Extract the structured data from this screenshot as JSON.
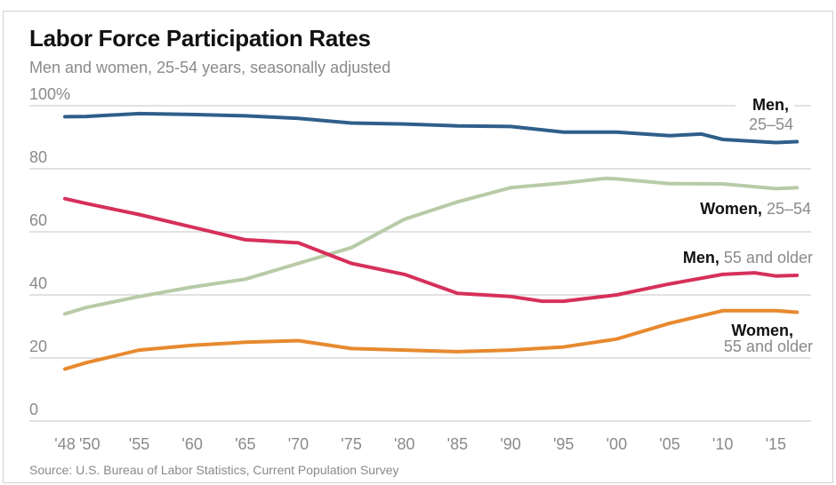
{
  "title": "Labor Force Participation Rates",
  "subtitle": "Men and women, 25-54 years, seasonally adjusted",
  "source": "Source: U.S. Bureau of Labor Statistics, Current Population Survey",
  "chart_data": {
    "type": "line",
    "title": "Labor Force Participation Rates",
    "subtitle": "Men and women, 25-54 years, seasonally adjusted",
    "xlim": [
      1948,
      2017
    ],
    "ylim": [
      0,
      100
    ],
    "grid": true,
    "y_ticks": [
      {
        "v": 0,
        "label": "0"
      },
      {
        "v": 20,
        "label": "20"
      },
      {
        "v": 40,
        "label": "40"
      },
      {
        "v": 60,
        "label": "60"
      },
      {
        "v": 80,
        "label": "80"
      },
      {
        "v": 100,
        "label": "100%"
      }
    ],
    "x_ticks": [
      {
        "v": 1948,
        "label": "'48"
      },
      {
        "v": 1950,
        "label": "'50"
      },
      {
        "v": 1955,
        "label": "'55"
      },
      {
        "v": 1960,
        "label": "'60"
      },
      {
        "v": 1965,
        "label": "'65"
      },
      {
        "v": 1970,
        "label": "'70"
      },
      {
        "v": 1975,
        "label": "'75"
      },
      {
        "v": 1980,
        "label": "'80"
      },
      {
        "v": 1985,
        "label": "'85"
      },
      {
        "v": 1990,
        "label": "'90"
      },
      {
        "v": 1995,
        "label": "'95"
      },
      {
        "v": 2000,
        "label": "'00"
      },
      {
        "v": 2005,
        "label": "'05"
      },
      {
        "v": 2010,
        "label": "'10"
      },
      {
        "v": 2015,
        "label": "'15"
      }
    ],
    "series": [
      {
        "name": "Men, 25–54",
        "label_bold": "Men,",
        "label_light": "25–54",
        "color": "#2f5f8a",
        "x": [
          1948,
          1950,
          1955,
          1960,
          1965,
          1970,
          1975,
          1980,
          1985,
          1990,
          1995,
          2000,
          2005,
          2008,
          2010,
          2015,
          2017
        ],
        "y": [
          96.5,
          96.6,
          97.5,
          97.2,
          96.8,
          96,
          94.5,
          94.2,
          93.6,
          93.4,
          91.6,
          91.6,
          90.5,
          91,
          89.3,
          88.3,
          88.6
        ]
      },
      {
        "name": "Women, 25–54",
        "label_bold": "Women,",
        "label_light": "25–54",
        "color": "#b7cba7",
        "x": [
          1948,
          1950,
          1955,
          1960,
          1965,
          1970,
          1975,
          1980,
          1985,
          1990,
          1995,
          1999,
          2000,
          2005,
          2010,
          2015,
          2017
        ],
        "y": [
          34,
          36,
          39.5,
          42.5,
          45,
          50,
          55,
          64,
          69.5,
          74,
          75.5,
          77,
          76.8,
          75.3,
          75.2,
          73.7,
          74
        ]
      },
      {
        "name": "Men, 55 and older",
        "label_bold": "Men,",
        "label_light": "55 and older",
        "color": "#d6305a",
        "x": [
          1948,
          1950,
          1955,
          1960,
          1965,
          1970,
          1975,
          1980,
          1985,
          1990,
          1993,
          1995,
          2000,
          2005,
          2010,
          2013,
          2015,
          2017
        ],
        "y": [
          70.5,
          69,
          65.5,
          61.5,
          57.5,
          56.5,
          50,
          46.5,
          40.5,
          39.5,
          38,
          38,
          40,
          43.5,
          46.5,
          47,
          46,
          46.2
        ]
      },
      {
        "name": "Women, 55 and older",
        "label_bold": "Women,",
        "label_light": "55 and older",
        "color": "#e8892e",
        "x": [
          1948,
          1950,
          1955,
          1960,
          1965,
          1970,
          1975,
          1980,
          1985,
          1990,
          1995,
          2000,
          2005,
          2010,
          2015,
          2017
        ],
        "y": [
          16.5,
          18.5,
          22.5,
          24,
          25,
          25.5,
          23,
          22.5,
          22,
          22.5,
          23.5,
          26,
          31,
          35,
          35,
          34.5
        ]
      }
    ]
  }
}
